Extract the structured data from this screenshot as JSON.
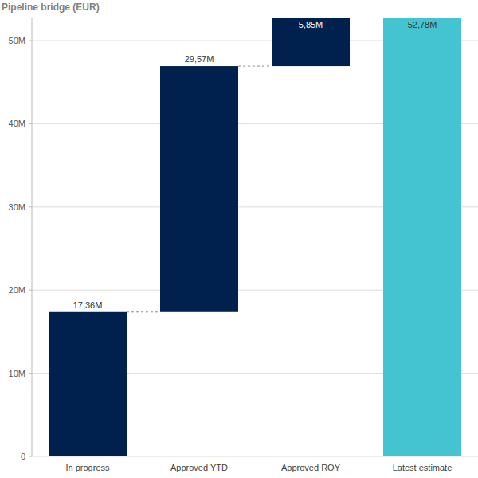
{
  "chart_data": {
    "type": "waterfall",
    "title": "Pipeline bridge (EUR)",
    "categories": [
      "In progress",
      "Approved YTD",
      "Approved ROY",
      "Latest estimate"
    ],
    "values": [
      17.36,
      29.57,
      5.85,
      52.78
    ],
    "value_labels": [
      "17,36M",
      "29,57M",
      "5,85M",
      "52,78M"
    ],
    "colors": [
      "#00204e",
      "#00204e",
      "#00204e",
      "#44c3d0"
    ],
    "ylim": [
      0,
      52.78
    ],
    "yticks": [
      0,
      {
        "value": 10,
        "label": "10M"
      },
      {
        "value": 20,
        "label": "20M"
      },
      {
        "value": 30,
        "label": "30M"
      },
      {
        "value": 40,
        "label": "40M"
      },
      {
        "value": 50,
        "label": "50M"
      }
    ],
    "grid": true,
    "data_labels": true
  }
}
